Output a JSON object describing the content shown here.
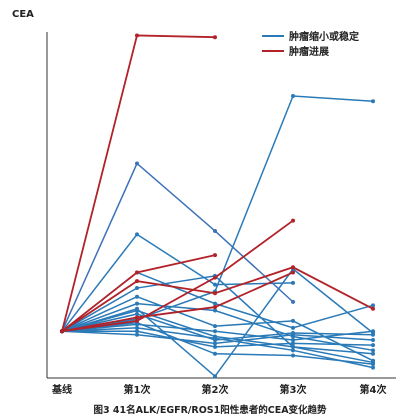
{
  "chart_data": {
    "type": "line",
    "title": "",
    "caption": "图3 41名ALK/EGFR/ROS1阳性患者的CEA变化趋势",
    "ylabel": "CEA",
    "xlabel": "",
    "categories": [
      "基线",
      "第1次",
      "第2次",
      "第3次",
      "第4次"
    ],
    "ylim": [
      0,
      100
    ],
    "grid": false,
    "legend_position": "top-right",
    "legend": [
      {
        "label": "肿瘤缩小或稳定",
        "color": "#2a7ab8"
      },
      {
        "label": "肿瘤进展",
        "color": "#b22229"
      }
    ],
    "series": [
      {
        "group": "progression",
        "color": "#b22229",
        "values": [
          13.5,
          99,
          98.5,
          null,
          null
        ]
      },
      {
        "group": "progression",
        "color": "#b22229",
        "values": [
          13.5,
          30.5,
          35.5,
          null,
          null
        ]
      },
      {
        "group": "progression",
        "color": "#b22229",
        "values": [
          13.5,
          17.5,
          20.5,
          30.5,
          null
        ]
      },
      {
        "group": "progression",
        "color": "#b22229",
        "values": [
          13.5,
          28,
          24.5,
          32,
          20
        ]
      },
      {
        "group": "progression",
        "color": "#b22229",
        "values": [
          13.5,
          16.5,
          29,
          45.5,
          null
        ]
      },
      {
        "group": "stable",
        "color": "#3d72b8",
        "values": [
          13.5,
          62,
          42.5,
          22,
          null
        ]
      },
      {
        "group": "stable",
        "color": "#2a7ab8",
        "values": [
          13.5,
          41.5,
          27,
          27.5,
          null
        ]
      },
      {
        "group": "stable",
        "color": "#2a7ab8",
        "values": [
          13.5,
          20,
          0.5,
          31.5,
          13
        ]
      },
      {
        "group": "stable",
        "color": "#2a7ab8",
        "values": [
          13.5,
          17,
          25,
          81.5,
          80
        ]
      },
      {
        "group": "stable",
        "color": "#2a7ab8",
        "values": [
          13.5,
          30.5,
          21.5,
          14.5,
          21
        ]
      },
      {
        "group": "stable",
        "color": "#2a7ab8",
        "values": [
          13.5,
          26,
          29.5,
          9,
          7
        ]
      },
      {
        "group": "stable",
        "color": "#2a7ab8",
        "values": [
          13.5,
          21.5,
          19.5,
          12,
          8
        ]
      },
      {
        "group": "stable",
        "color": "#2a7ab8",
        "values": [
          13.5,
          23.5,
          15,
          16.5,
          5
        ]
      },
      {
        "group": "stable",
        "color": "#2a7ab8",
        "values": [
          13.5,
          18.5,
          11,
          13,
          12.5
        ]
      },
      {
        "group": "stable",
        "color": "#2a7ab8",
        "values": [
          13.5,
          15.5,
          13.5,
          11,
          13.5
        ]
      },
      {
        "group": "stable",
        "color": "#2a7ab8",
        "values": [
          13.5,
          13.5,
          9,
          10,
          9.5
        ]
      },
      {
        "group": "stable",
        "color": "#2a7ab8",
        "values": [
          13.5,
          14.5,
          11.5,
          8,
          3
        ]
      },
      {
        "group": "stable",
        "color": "#2a7ab8",
        "values": [
          13.5,
          16,
          7,
          6.5,
          4
        ]
      },
      {
        "group": "stable",
        "color": "#2a7ab8",
        "values": [
          13.5,
          12.5,
          10,
          12.5,
          11
        ]
      },
      {
        "group": "stable",
        "color": "#2a7ab8",
        "values": [
          13.5,
          19.5,
          12,
          9,
          4.5
        ]
      }
    ]
  }
}
